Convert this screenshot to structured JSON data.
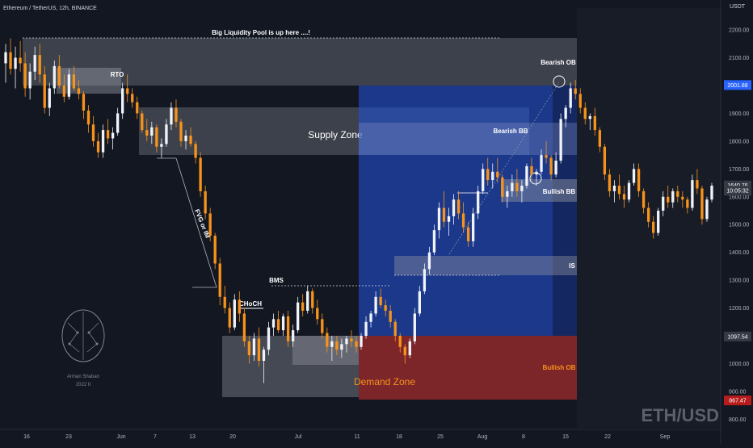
{
  "chart_title": "Ethereum / TetherUS, 12h, BINANCE",
  "currency": "USDT",
  "watermark": "ETH/USD",
  "logo_text": [
    "Arman Shaban",
    "2022 II"
  ],
  "colors": {
    "background": "#131722",
    "candle_up": "#f0f3fa",
    "candle_down": "#f7931a",
    "zone_gray": "#787b86",
    "zone_blue": "#1e3f9a",
    "zone_red": "#8b2424",
    "demand_label": "#f7931a"
  },
  "chart_data": {
    "type": "candlestick",
    "ylim": [
      775,
      2270
    ],
    "yticks": [
      800,
      900,
      1000,
      1100,
      1200,
      1300,
      1400,
      1500,
      1600,
      1700,
      1800,
      1900,
      2000,
      2100,
      2200
    ],
    "xticks": [
      "16",
      "23",
      "Jun",
      "7",
      "13",
      "20",
      "Jul",
      "11",
      "18",
      "25",
      "Aug",
      "8",
      "15",
      "22",
      "Sep"
    ],
    "price_labels": [
      {
        "text": "2001.88",
        "value": 2001.88,
        "color": "#2962ff"
      },
      {
        "text": "1640.76",
        "value": 1640.76,
        "color": "#363a45"
      },
      {
        "text": "10:05:32",
        "value": 1622,
        "color": "#363a45"
      },
      {
        "text": "1097.54",
        "value": 1097.54,
        "color": "#363a45"
      },
      {
        "text": "867.47",
        "value": 867.47,
        "color": "#b71c1c"
      }
    ],
    "ohlc": [
      [
        2080,
        2150,
        2010,
        2120
      ],
      [
        2120,
        2170,
        2040,
        2060
      ],
      [
        2060,
        2140,
        1990,
        2100
      ],
      [
        2100,
        2160,
        2050,
        2080
      ],
      [
        2080,
        2120,
        1960,
        1990
      ],
      [
        1990,
        2080,
        1950,
        2050
      ],
      [
        2050,
        2140,
        2020,
        2110
      ],
      [
        2110,
        2150,
        2010,
        2040
      ],
      [
        2040,
        2070,
        1900,
        1920
      ],
      [
        1920,
        2010,
        1890,
        1990
      ],
      [
        1990,
        2090,
        1970,
        2070
      ],
      [
        2070,
        2110,
        1990,
        2000
      ],
      [
        2000,
        2040,
        1940,
        1960
      ],
      [
        1960,
        2060,
        1950,
        2040
      ],
      [
        2040,
        2070,
        1980,
        1990
      ],
      [
        1990,
        2020,
        1950,
        1970
      ],
      [
        1970,
        1980,
        1880,
        1910
      ],
      [
        1910,
        1930,
        1830,
        1860
      ],
      [
        1860,
        1890,
        1780,
        1800
      ],
      [
        1800,
        1830,
        1740,
        1760
      ],
      [
        1760,
        1860,
        1740,
        1840
      ],
      [
        1840,
        1880,
        1790,
        1810
      ],
      [
        1810,
        1850,
        1770,
        1830
      ],
      [
        1830,
        1920,
        1820,
        1900
      ],
      [
        1900,
        2010,
        1880,
        1990
      ],
      [
        1990,
        2040,
        1940,
        1970
      ],
      [
        1970,
        1990,
        1920,
        1940
      ],
      [
        1940,
        1960,
        1880,
        1900
      ],
      [
        1900,
        1910,
        1830,
        1840
      ],
      [
        1840,
        1880,
        1800,
        1820
      ],
      [
        1820,
        1870,
        1790,
        1850
      ],
      [
        1850,
        1860,
        1760,
        1780
      ],
      [
        1780,
        1810,
        1740,
        1790
      ],
      [
        1790,
        1880,
        1780,
        1860
      ],
      [
        1860,
        1940,
        1840,
        1920
      ],
      [
        1920,
        1950,
        1850,
        1870
      ],
      [
        1870,
        1880,
        1780,
        1800
      ],
      [
        1800,
        1840,
        1770,
        1820
      ],
      [
        1820,
        1850,
        1780,
        1790
      ],
      [
        1790,
        1800,
        1720,
        1740
      ],
      [
        1740,
        1760,
        1600,
        1620
      ],
      [
        1620,
        1640,
        1520,
        1540
      ],
      [
        1540,
        1560,
        1440,
        1460
      ],
      [
        1460,
        1470,
        1340,
        1360
      ],
      [
        1360,
        1380,
        1210,
        1240
      ],
      [
        1240,
        1280,
        1180,
        1200
      ],
      [
        1200,
        1220,
        1110,
        1130
      ],
      [
        1130,
        1250,
        1120,
        1230
      ],
      [
        1230,
        1260,
        1150,
        1180
      ],
      [
        1180,
        1200,
        1060,
        1080
      ],
      [
        1080,
        1100,
        1000,
        1030
      ],
      [
        1030,
        1110,
        1010,
        1090
      ],
      [
        1090,
        1130,
        990,
        1010
      ],
      [
        1010,
        1060,
        930,
        1050
      ],
      [
        1050,
        1150,
        1030,
        1130
      ],
      [
        1130,
        1180,
        1100,
        1160
      ],
      [
        1160,
        1190,
        1110,
        1120
      ],
      [
        1120,
        1180,
        1100,
        1170
      ],
      [
        1170,
        1190,
        1060,
        1080
      ],
      [
        1080,
        1140,
        1060,
        1120
      ],
      [
        1120,
        1240,
        1110,
        1220
      ],
      [
        1220,
        1250,
        1170,
        1190
      ],
      [
        1190,
        1280,
        1180,
        1260
      ],
      [
        1260,
        1270,
        1180,
        1200
      ],
      [
        1200,
        1230,
        1140,
        1160
      ],
      [
        1160,
        1180,
        1090,
        1110
      ],
      [
        1110,
        1130,
        1040,
        1060
      ],
      [
        1060,
        1100,
        1010,
        1080
      ],
      [
        1080,
        1100,
        1030,
        1050
      ],
      [
        1050,
        1090,
        1020,
        1070
      ],
      [
        1070,
        1100,
        1040,
        1090
      ],
      [
        1090,
        1120,
        1060,
        1080
      ],
      [
        1080,
        1100,
        1040,
        1060
      ],
      [
        1060,
        1110,
        1050,
        1100
      ],
      [
        1100,
        1170,
        1090,
        1150
      ],
      [
        1150,
        1190,
        1130,
        1180
      ],
      [
        1180,
        1260,
        1170,
        1240
      ],
      [
        1240,
        1270,
        1200,
        1210
      ],
      [
        1210,
        1230,
        1170,
        1190
      ],
      [
        1190,
        1210,
        1130,
        1150
      ],
      [
        1150,
        1160,
        1080,
        1100
      ],
      [
        1100,
        1110,
        1040,
        1060
      ],
      [
        1060,
        1070,
        1000,
        1030
      ],
      [
        1030,
        1090,
        1020,
        1080
      ],
      [
        1080,
        1200,
        1070,
        1180
      ],
      [
        1180,
        1280,
        1170,
        1260
      ],
      [
        1260,
        1360,
        1250,
        1340
      ],
      [
        1340,
        1420,
        1320,
        1400
      ],
      [
        1400,
        1500,
        1390,
        1480
      ],
      [
        1480,
        1580,
        1450,
        1560
      ],
      [
        1560,
        1620,
        1490,
        1510
      ],
      [
        1510,
        1560,
        1460,
        1530
      ],
      [
        1530,
        1610,
        1500,
        1590
      ],
      [
        1590,
        1620,
        1520,
        1540
      ],
      [
        1540,
        1580,
        1470,
        1490
      ],
      [
        1490,
        1510,
        1420,
        1440
      ],
      [
        1440,
        1560,
        1420,
        1540
      ],
      [
        1540,
        1640,
        1520,
        1620
      ],
      [
        1620,
        1720,
        1610,
        1700
      ],
      [
        1700,
        1740,
        1640,
        1660
      ],
      [
        1660,
        1720,
        1630,
        1690
      ],
      [
        1690,
        1740,
        1650,
        1670
      ],
      [
        1670,
        1680,
        1580,
        1600
      ],
      [
        1600,
        1640,
        1560,
        1620
      ],
      [
        1620,
        1680,
        1600,
        1650
      ],
      [
        1650,
        1700,
        1600,
        1620
      ],
      [
        1620,
        1660,
        1580,
        1640
      ],
      [
        1640,
        1720,
        1630,
        1710
      ],
      [
        1710,
        1740,
        1660,
        1680
      ],
      [
        1680,
        1700,
        1640,
        1690
      ],
      [
        1690,
        1770,
        1680,
        1750
      ],
      [
        1750,
        1800,
        1720,
        1740
      ],
      [
        1740,
        1750,
        1660,
        1680
      ],
      [
        1680,
        1760,
        1670,
        1730
      ],
      [
        1730,
        1900,
        1720,
        1880
      ],
      [
        1880,
        1930,
        1850,
        1920
      ],
      [
        1920,
        2010,
        1900,
        1990
      ],
      [
        1990,
        2020,
        1950,
        1970
      ],
      [
        1970,
        1990,
        1900,
        1920
      ],
      [
        1920,
        1940,
        1860,
        1880
      ],
      [
        1880,
        1900,
        1840,
        1890
      ],
      [
        1890,
        1920,
        1820,
        1840
      ],
      [
        1840,
        1850,
        1760,
        1780
      ],
      [
        1780,
        1790,
        1660,
        1680
      ],
      [
        1680,
        1700,
        1600,
        1620
      ],
      [
        1620,
        1660,
        1580,
        1640
      ],
      [
        1640,
        1680,
        1590,
        1610
      ],
      [
        1610,
        1640,
        1560,
        1590
      ],
      [
        1590,
        1660,
        1580,
        1650
      ],
      [
        1650,
        1720,
        1640,
        1700
      ],
      [
        1700,
        1720,
        1600,
        1620
      ],
      [
        1620,
        1630,
        1540,
        1560
      ],
      [
        1560,
        1580,
        1490,
        1510
      ],
      [
        1510,
        1530,
        1450,
        1470
      ],
      [
        1470,
        1560,
        1460,
        1550
      ],
      [
        1550,
        1620,
        1530,
        1600
      ],
      [
        1600,
        1640,
        1560,
        1580
      ],
      [
        1580,
        1630,
        1560,
        1620
      ],
      [
        1620,
        1640,
        1580,
        1600
      ],
      [
        1600,
        1620,
        1560,
        1590
      ],
      [
        1590,
        1600,
        1540,
        1560
      ],
      [
        1560,
        1680,
        1550,
        1660
      ],
      [
        1660,
        1700,
        1610,
        1630
      ],
      [
        1630,
        1640,
        1500,
        1520
      ],
      [
        1520,
        1600,
        1510,
        1590
      ],
      [
        1590,
        1650,
        1580,
        1640
      ]
    ]
  },
  "zones": {
    "liquidity_label": "Big Liquidity Pool is up here ....!",
    "rto_label": "RTO",
    "supply_label": "Supply Zone",
    "bearish_ob_label": "Bearish OB",
    "bearish_bb_label": "Bearish BB",
    "bullish_bb_label": "Bullish BB",
    "is_label": "IS",
    "bullish_ob_label": "Bullish OB",
    "demand_label": "Demand Zone",
    "bms_label": "BMS",
    "choch_label": "CHoCH",
    "fvg_label": "FVG or IM"
  }
}
